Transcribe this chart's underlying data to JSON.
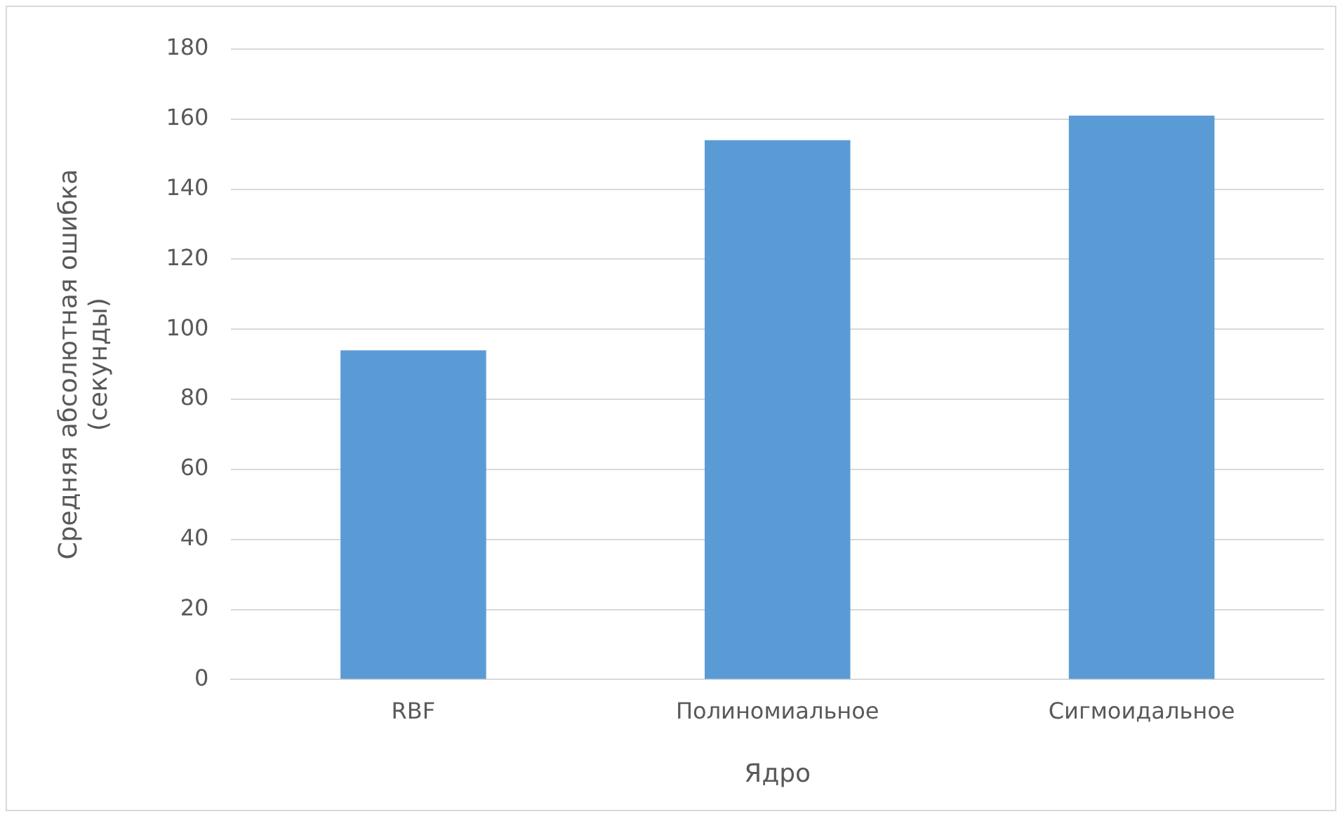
{
  "chart_data": {
    "type": "bar",
    "xlabel": "Ядро",
    "ylabel": "Средняя абсолютная ошибка\n(секунды)",
    "categories": [
      "RBF",
      "Полиномиальное",
      "Сигмоидальное"
    ],
    "values": [
      94,
      154,
      161
    ],
    "color": "#5b9bd5",
    "ylim": [
      0,
      180
    ],
    "yticks": [
      0,
      20,
      40,
      60,
      80,
      100,
      120,
      140,
      160,
      180
    ],
    "grid": "y",
    "legend": false
  }
}
